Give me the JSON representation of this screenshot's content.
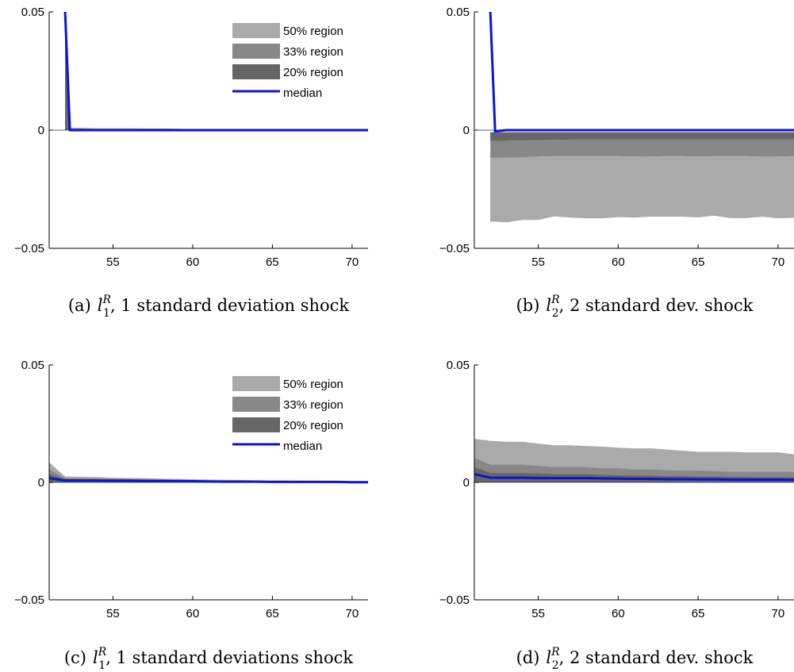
{
  "chart_data": [
    {
      "id": "a",
      "type": "area",
      "caption": {
        "prefix": "(a)",
        "sym": "l",
        "sub": "1",
        "sup": "R",
        "rest": ", 1 standard deviation shock"
      },
      "xlim": [
        51,
        71
      ],
      "ylim": [
        -0.05,
        0.05
      ],
      "xticks": [
        55,
        60,
        65,
        70
      ],
      "xtick_labels": [
        "55",
        "60",
        "65",
        "70"
      ],
      "yticks": [
        -0.05,
        0,
        0.05
      ],
      "ytick_labels": [
        "−0.05",
        "0",
        "0.05"
      ],
      "legend": {
        "show": true,
        "location": "top-right",
        "entries": [
          "50% region",
          "33% region",
          "20% region",
          "median"
        ]
      },
      "x": [
        52,
        52.3,
        53,
        54,
        55,
        56,
        57,
        58,
        59,
        60,
        61,
        62,
        63,
        64,
        65,
        66,
        67,
        68,
        69,
        70,
        71
      ],
      "bands": [
        {
          "name": "50% region",
          "color": "#aaaaaa",
          "lower": [
            0,
            0,
            0,
            0,
            0,
            0,
            0,
            0,
            0,
            0,
            0,
            0,
            0,
            0,
            0,
            0,
            0,
            0,
            0,
            0,
            0
          ],
          "upper": [
            0.05,
            0.001,
            0.001,
            0.0008,
            0.0008,
            0.0008,
            0.0007,
            0.0007,
            0.0006,
            0.0004,
            0.0004,
            0.0003,
            0.0003,
            0.0003,
            0.0003,
            0.0002,
            0.0002,
            0.0002,
            0.0002,
            0.0002,
            0.0002
          ]
        },
        {
          "name": "33% region",
          "color": "#888888",
          "lower": [
            0,
            0,
            0,
            0,
            0,
            0,
            0,
            0,
            0,
            0,
            0,
            0,
            0,
            0,
            0,
            0,
            0,
            0,
            0,
            0,
            0
          ],
          "upper": [
            0.05,
            0.0005,
            0.0005,
            0.0004,
            0.0004,
            0.0004,
            0.0003,
            0.0003,
            0.0003,
            0.0002,
            0.0002,
            0.0002,
            0.0002,
            0.0001,
            0.0001,
            0.0001,
            0.0001,
            0.0001,
            0.0001,
            0.0001,
            0.0001
          ]
        },
        {
          "name": "20% region",
          "color": "#666666",
          "lower": [
            0,
            0,
            0,
            0,
            0,
            0,
            0,
            0,
            0,
            0,
            0,
            0,
            0,
            0,
            0,
            0,
            0,
            0,
            0,
            0,
            0
          ],
          "upper": [
            0.05,
            0.0003,
            0.0003,
            0.0002,
            0.0002,
            0.0002,
            0.0002,
            0.0002,
            0.0001,
            0.0001,
            0.0001,
            0.0001,
            0.0001,
            0.0001,
            0.0001,
            0.0001,
            0.0001,
            0.0001,
            0.0001,
            0.0001,
            0.0001
          ]
        }
      ],
      "median": {
        "name": "median",
        "color": "#0a14d8",
        "values": [
          0.05,
          0,
          0,
          0,
          0,
          0,
          0,
          0,
          0,
          0,
          0,
          0,
          0,
          0,
          0,
          0,
          0,
          0,
          0,
          0,
          0
        ]
      }
    },
    {
      "id": "b",
      "type": "area",
      "caption": {
        "prefix": "(b)",
        "sym": "l",
        "sub": "2",
        "sup": "R",
        "rest": ", 2 standard dev. shock"
      },
      "xlim": [
        51,
        71
      ],
      "ylim": [
        -0.05,
        0.05
      ],
      "xticks": [
        55,
        60,
        65,
        70
      ],
      "xtick_labels": [
        "55",
        "60",
        "65",
        "70"
      ],
      "yticks": [
        -0.05,
        0,
        0.05
      ],
      "ytick_labels": [
        "−0.05",
        "0",
        "0.05"
      ],
      "legend": {
        "show": false
      },
      "x": [
        52,
        52.3,
        53,
        54,
        55,
        56,
        57,
        58,
        59,
        60,
        61,
        62,
        63,
        64,
        65,
        66,
        67,
        68,
        69,
        70,
        71
      ],
      "bands": [
        {
          "name": "50% region",
          "color": "#aaaaaa",
          "lower": [
            -0.0387,
            -0.0387,
            -0.039,
            -0.038,
            -0.038,
            -0.0365,
            -0.037,
            -0.0373,
            -0.0373,
            -0.0368,
            -0.037,
            -0.0366,
            -0.0366,
            -0.0366,
            -0.0369,
            -0.0362,
            -0.0372,
            -0.0372,
            -0.0366,
            -0.0373,
            -0.0371
          ],
          "upper": [
            -0.0117,
            -0.0117,
            -0.0117,
            -0.0115,
            -0.0112,
            -0.011,
            -0.011,
            -0.011,
            -0.011,
            -0.011,
            -0.0112,
            -0.0112,
            -0.011,
            -0.011,
            -0.0112,
            -0.011,
            -0.011,
            -0.011,
            -0.0112,
            -0.0112,
            -0.011
          ]
        },
        {
          "name": "33% region",
          "color": "#888888",
          "lower": [
            -0.0117,
            -0.0117,
            -0.0117,
            -0.0115,
            -0.0112,
            -0.011,
            -0.011,
            -0.011,
            -0.011,
            -0.011,
            -0.0112,
            -0.0112,
            -0.011,
            -0.011,
            -0.0112,
            -0.011,
            -0.011,
            -0.011,
            -0.0112,
            -0.0112,
            -0.011
          ],
          "upper": [
            -0.0046,
            -0.0046,
            -0.0045,
            -0.0044,
            -0.0042,
            -0.0041,
            -0.004,
            -0.004,
            -0.004,
            -0.004,
            -0.004,
            -0.004,
            -0.004,
            -0.004,
            -0.004,
            -0.004,
            -0.004,
            -0.004,
            -0.004,
            -0.004,
            -0.004
          ]
        },
        {
          "name": "20% region",
          "color": "#666666",
          "lower": [
            -0.0046,
            -0.0046,
            -0.0045,
            -0.0044,
            -0.0042,
            -0.0041,
            -0.004,
            -0.004,
            -0.004,
            -0.004,
            -0.004,
            -0.004,
            -0.004,
            -0.004,
            -0.004,
            -0.004,
            -0.004,
            -0.004,
            -0.004,
            -0.004,
            -0.004
          ],
          "upper": [
            -0.0009,
            -0.0009,
            -0.0009,
            -0.0009,
            -0.0009,
            -0.0009,
            -0.0009,
            -0.0009,
            -0.0009,
            -0.0009,
            -0.0009,
            -0.0009,
            -0.0009,
            -0.0009,
            -0.0009,
            -0.0009,
            -0.0009,
            -0.0009,
            -0.0009,
            -0.0009,
            -0.0009
          ]
        }
      ],
      "median": {
        "name": "median",
        "color": "#0a14d8",
        "values": [
          0.05,
          -0.0005,
          0,
          0,
          0,
          0,
          0,
          0,
          0,
          0,
          0,
          0,
          0,
          0,
          0,
          0,
          0,
          0,
          0,
          0,
          0
        ]
      }
    },
    {
      "id": "c",
      "type": "area",
      "caption": {
        "prefix": "(c)",
        "sym": "l",
        "sub": "1",
        "sup": "R",
        "rest": ", 1 standard deviations shock"
      },
      "xlim": [
        51,
        71
      ],
      "ylim": [
        -0.05,
        0.05
      ],
      "xticks": [
        55,
        60,
        65,
        70
      ],
      "xtick_labels": [
        "55",
        "60",
        "65",
        "70"
      ],
      "yticks": [
        -0.05,
        0,
        0.05
      ],
      "ytick_labels": [
        "−0.05",
        "0",
        "0.05"
      ],
      "legend": {
        "show": true,
        "location": "top-right",
        "entries": [
          "50% region",
          "33% region",
          "20% region",
          "median"
        ]
      },
      "x": [
        51,
        52,
        53,
        54,
        55,
        56,
        57,
        58,
        59,
        60,
        61,
        62,
        63,
        64,
        65,
        66,
        67,
        68,
        69,
        70,
        71
      ],
      "bands": [
        {
          "name": "50% region",
          "color": "#aaaaaa",
          "lower": [
            0,
            0,
            0,
            0,
            0,
            0,
            0,
            0,
            0,
            0,
            0,
            0,
            0,
            0,
            0,
            0,
            0,
            0,
            0,
            0,
            0
          ],
          "upper": [
            0.0085,
            0.0025,
            0.0024,
            0.0023,
            0.002,
            0.0019,
            0.0018,
            0.0016,
            0.0015,
            0.0013,
            0.0012,
            0.0011,
            0.001,
            0.0009,
            0.0008,
            0.0008,
            0.0007,
            0.0007,
            0.0006,
            0.0005,
            0.0005
          ]
        },
        {
          "name": "33% region",
          "color": "#888888",
          "lower": [
            0,
            0,
            0,
            0,
            0,
            0,
            0,
            0,
            0,
            0,
            0,
            0,
            0,
            0,
            0,
            0,
            0,
            0,
            0,
            0,
            0
          ],
          "upper": [
            0.0055,
            0.0018,
            0.0017,
            0.0016,
            0.0015,
            0.0014,
            0.0013,
            0.0012,
            0.0011,
            0.001,
            0.0009,
            0.0008,
            0.0008,
            0.0007,
            0.0006,
            0.0006,
            0.0005,
            0.0005,
            0.0005,
            0.0004,
            0.0004
          ]
        },
        {
          "name": "20% region",
          "color": "#666666",
          "lower": [
            0,
            0,
            0,
            0,
            0,
            0,
            0,
            0,
            0,
            0,
            0,
            0,
            0,
            0,
            0,
            0,
            0,
            0,
            0,
            0,
            0
          ],
          "upper": [
            0.0035,
            0.0013,
            0.0012,
            0.0012,
            0.0011,
            0.001,
            0.001,
            0.0009,
            0.0008,
            0.0008,
            0.0007,
            0.0006,
            0.0006,
            0.0005,
            0.0005,
            0.0004,
            0.0004,
            0.0004,
            0.0003,
            0.0003,
            0.0003
          ]
        }
      ],
      "median": {
        "name": "median",
        "color": "#0a14d8",
        "values": [
          0.0018,
          0.0008,
          0.0008,
          0.0008,
          0.0007,
          0.0007,
          0.0006,
          0.0006,
          0.0005,
          0.0005,
          0.0004,
          0.0003,
          0.0003,
          0.0003,
          0.0002,
          0.0002,
          0.0002,
          0.0002,
          0.0002,
          0.0001,
          0.0001
        ]
      }
    },
    {
      "id": "d",
      "type": "area",
      "caption": {
        "prefix": "(d)",
        "sym": "l",
        "sub": "2",
        "sup": "R",
        "rest": ", 2 standard dev. shock"
      },
      "xlim": [
        51,
        71
      ],
      "ylim": [
        -0.05,
        0.05
      ],
      "xticks": [
        55,
        60,
        65,
        70
      ],
      "xtick_labels": [
        "55",
        "60",
        "65",
        "70"
      ],
      "yticks": [
        -0.05,
        0,
        0.05
      ],
      "ytick_labels": [
        "−0.05",
        "0",
        "0.05"
      ],
      "legend": {
        "show": false
      },
      "x": [
        51,
        52,
        53,
        54,
        55,
        56,
        57,
        58,
        59,
        60,
        61,
        62,
        63,
        64,
        65,
        66,
        67,
        68,
        69,
        70,
        71
      ],
      "bands": [
        {
          "name": "50% region",
          "color": "#aaaaaa",
          "lower": [
            0,
            0,
            0,
            0,
            0,
            0,
            0,
            0,
            0,
            0,
            0,
            0,
            0,
            0,
            0,
            0,
            0,
            0,
            0,
            0,
            0
          ],
          "upper": [
            0.0186,
            0.0177,
            0.0173,
            0.0173,
            0.0165,
            0.0158,
            0.0158,
            0.0155,
            0.0152,
            0.0148,
            0.0145,
            0.0145,
            0.014,
            0.0135,
            0.013,
            0.013,
            0.013,
            0.0128,
            0.0128,
            0.0128,
            0.012
          ]
        },
        {
          "name": "33% region",
          "color": "#888888",
          "lower": [
            0,
            0,
            0,
            0,
            0,
            0,
            0,
            0,
            0,
            0,
            0,
            0,
            0,
            0,
            0,
            0,
            0,
            0,
            0,
            0,
            0
          ],
          "upper": [
            0.0105,
            0.0075,
            0.0075,
            0.0075,
            0.007,
            0.0065,
            0.0065,
            0.0065,
            0.006,
            0.006,
            0.0055,
            0.0055,
            0.0052,
            0.005,
            0.005,
            0.0048,
            0.0045,
            0.0045,
            0.0045,
            0.0045,
            0.0045
          ]
        },
        {
          "name": "20% region",
          "color": "#666666",
          "lower": [
            0,
            0,
            0,
            0,
            0,
            0,
            0,
            0,
            0,
            0,
            0,
            0,
            0,
            0,
            0,
            0,
            0,
            0,
            0,
            0,
            0
          ],
          "upper": [
            0.0065,
            0.004,
            0.004,
            0.004,
            0.0038,
            0.0035,
            0.0035,
            0.0035,
            0.0032,
            0.003,
            0.003,
            0.0028,
            0.0027,
            0.0026,
            0.0025,
            0.0025,
            0.0024,
            0.0023,
            0.0022,
            0.0022,
            0.0022
          ]
        }
      ],
      "median": {
        "name": "median",
        "color": "#0a14d8",
        "values": [
          0.0035,
          0.002,
          0.002,
          0.002,
          0.0018,
          0.0018,
          0.0018,
          0.0018,
          0.0017,
          0.0016,
          0.0015,
          0.0015,
          0.0014,
          0.0014,
          0.0013,
          0.0013,
          0.0012,
          0.0012,
          0.0012,
          0.0012,
          0.0011
        ]
      }
    }
  ]
}
